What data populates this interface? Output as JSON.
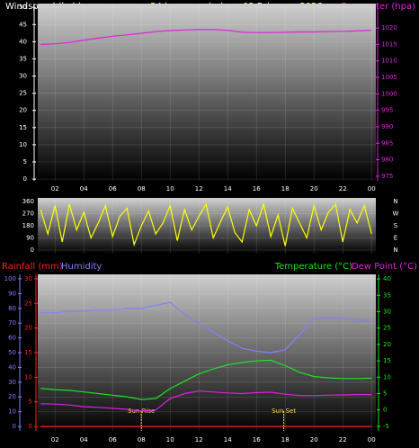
{
  "chart_data": [
    {
      "type": "line",
      "title": "24 hour graph day : 03 February 2026",
      "y_label": "Windspeed (kph)",
      "y2_label": "Barometer (hpa)",
      "xlim": [
        0.8,
        24.3
      ],
      "xticks": [
        {
          "value": 2,
          "label": "02"
        },
        {
          "value": 4,
          "label": "04"
        },
        {
          "value": 6,
          "label": "06"
        },
        {
          "value": 8,
          "label": "08"
        },
        10,
        12,
        14,
        16,
        18,
        20,
        22,
        {
          "value": 24,
          "label": "00"
        }
      ],
      "ylim": [
        -0.5,
        51.1
      ],
      "yticks": [
        0,
        5,
        10,
        15,
        20,
        25,
        30,
        35,
        40,
        45,
        50
      ],
      "y2lim": [
        973.6,
        1027.4
      ],
      "y2ticks": [
        975,
        980,
        985,
        990,
        995,
        1000,
        1005,
        1010,
        1015,
        1020
      ],
      "grid": true,
      "x": [
        1,
        2,
        3,
        4,
        5,
        6,
        7,
        8,
        9,
        10,
        11,
        12,
        13,
        14,
        15,
        16,
        17,
        18,
        19,
        20,
        21,
        22,
        23,
        24
      ],
      "series": [
        {
          "color": "#e020e0",
          "axis": "y2",
          "values": [
            1015.0,
            1015.2,
            1015.6,
            1016.3,
            1016.9,
            1017.5,
            1017.9,
            1018.4,
            1018.9,
            1019.2,
            1019.4,
            1019.5,
            1019.5,
            1019.3,
            1018.7,
            1018.6,
            1018.6,
            1018.7,
            1018.8,
            1018.8,
            1018.9,
            1019.0,
            1019.1,
            1019.3
          ]
        }
      ]
    },
    {
      "type": "line",
      "xlim": [
        0.8,
        24.3
      ],
      "ylim": [
        -27,
        387
      ],
      "yticks": [
        0,
        90,
        180,
        270,
        360
      ],
      "y2ticks": [
        {
          "value": 360,
          "label": "N"
        },
        {
          "value": 270,
          "label": "W"
        },
        {
          "value": 180,
          "label": "S"
        },
        {
          "value": 90,
          "label": "E"
        },
        {
          "value": 0,
          "label": "N"
        }
      ],
      "grid": true,
      "x": [
        1,
        1.5,
        2,
        2.5,
        3,
        3.5,
        4,
        4.5,
        5,
        5.5,
        6,
        6.5,
        7,
        7.5,
        8,
        8.5,
        9,
        9.5,
        10,
        10.5,
        11,
        11.5,
        12,
        12.5,
        13,
        13.5,
        14,
        14.5,
        15,
        15.5,
        16,
        16.5,
        17,
        17.5,
        18,
        18.5,
        19,
        19.5,
        20,
        20.5,
        21,
        21.5,
        22,
        22.5,
        23,
        23.5,
        24
      ],
      "series": [
        {
          "color": "#ffff00",
          "axis": "y",
          "values": [
            300,
            120,
            330,
            60,
            340,
            150,
            280,
            90,
            200,
            330,
            100,
            250,
            310,
            40,
            180,
            290,
            120,
            200,
            330,
            70,
            300,
            150,
            250,
            340,
            90,
            210,
            320,
            130,
            60,
            300,
            180,
            340,
            100,
            260,
            30,
            310,
            200,
            90,
            330,
            150,
            280,
            340,
            60,
            300,
            200,
            330,
            120
          ]
        }
      ]
    },
    {
      "type": "line",
      "y_label": "Humidity",
      "y2_label": "Temperature (°C)",
      "y3_label": "Rainfall (mm)",
      "y4_label": "Dew Point (°C)",
      "xlim": [
        0.8,
        24.3
      ],
      "xticks": [
        {
          "value": 2,
          "label": "02"
        },
        {
          "value": 4,
          "label": "04"
        },
        {
          "value": 6,
          "label": "06"
        },
        {
          "value": 8,
          "label": "08"
        },
        10,
        12,
        14,
        16,
        18,
        20,
        22,
        {
          "value": 24,
          "label": "00"
        }
      ],
      "ylim": [
        -3,
        103
      ],
      "yticks": [
        0,
        10,
        20,
        30,
        40,
        50,
        60,
        70,
        80,
        90,
        100
      ],
      "y2lim": [
        -6.4,
        41.4
      ],
      "y2ticks": [
        -5,
        0,
        5,
        10,
        15,
        20,
        25,
        30,
        35,
        40
      ],
      "y3lim": [
        -0.9,
        30.9
      ],
      "y3ticks": [
        0,
        5,
        10,
        15,
        20,
        25,
        30
      ],
      "grid": true,
      "annotations": [
        {
          "text": "Sun Rise",
          "x": 8
        },
        {
          "text": "Sun Set",
          "x": 17.9
        }
      ],
      "x": [
        1,
        2,
        3,
        4,
        5,
        6,
        7,
        8,
        9,
        10,
        11,
        12,
        13,
        14,
        15,
        16,
        17,
        18,
        19,
        20,
        21,
        22,
        23,
        24
      ],
      "series": [
        {
          "color": "#8080ff",
          "axis": "y",
          "values": [
            77,
            77,
            78,
            78,
            79,
            79,
            80,
            80,
            82,
            84,
            76,
            70,
            64,
            58,
            53,
            51,
            50,
            52,
            62,
            73,
            74,
            73,
            72,
            72
          ]
        },
        {
          "color": "#20e020",
          "axis": "y2",
          "values": [
            6.6,
            6.2,
            6.0,
            5.5,
            5.0,
            4.5,
            4.0,
            3.2,
            3.5,
            6.5,
            8.8,
            11.0,
            12.5,
            13.8,
            14.5,
            15.0,
            15.2,
            13.5,
            11.5,
            10.2,
            9.8,
            9.6,
            9.6,
            9.7
          ]
        },
        {
          "color": "#e020e0",
          "axis": "y2",
          "values": [
            1.9,
            1.8,
            1.5,
            1.0,
            0.8,
            0.5,
            0.2,
            -0.3,
            0,
            3.5,
            5.0,
            5.8,
            5.5,
            5.2,
            5.0,
            5.3,
            5.4,
            4.8,
            4.4,
            4.4,
            4.5,
            4.6,
            4.7,
            4.7
          ]
        },
        {
          "color": "#ff2020",
          "axis": "y3",
          "values": [
            0,
            0,
            0,
            0,
            0,
            0,
            0,
            0,
            0,
            0,
            0,
            0,
            0,
            0,
            0,
            0,
            0,
            0,
            0,
            0,
            0,
            0,
            0,
            0
          ]
        }
      ]
    }
  ]
}
